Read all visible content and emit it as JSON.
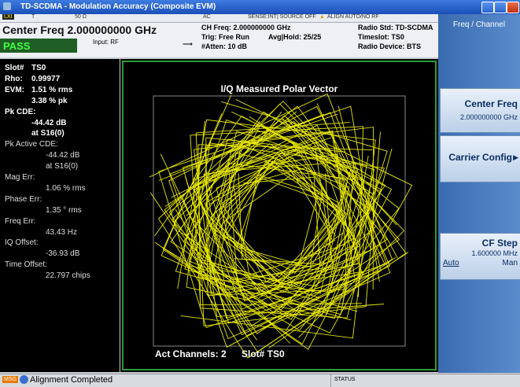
{
  "title_bar": {
    "title": "TD-SCDMA - Modulation Accuracy (Composite EVM)"
  },
  "status_row": {
    "trace": "T",
    "impedance": "50 Ω",
    "coupling": "AC",
    "sense": "SENSE:INT| SOURCE OFF",
    "align": "ALIGN AUTO/NO RF"
  },
  "header": {
    "center_freq": "Center Freq 2.000000000 GHz",
    "input": "Input: RF",
    "status": "PASS",
    "ch_freq": "CH Freq: 2.000000000 GHz",
    "trig": "Trig: Free Run",
    "avg": "Avg|Hold: 25/25",
    "atten": "#Atten: 10 dB",
    "radio_std": "Radio Std: TD-SCDMA",
    "timeslot": "Timeslot: TS0",
    "radio_device": "Radio Device: BTS"
  },
  "results": [
    {
      "label": "Slot#",
      "value": "TS0"
    },
    {
      "label": "Rho:",
      "value": "0.99977"
    },
    {
      "label": "EVM:",
      "value": "1.51 % rms"
    },
    {
      "value": "3.38 % pk"
    },
    {
      "label": "Pk CDE:"
    },
    {
      "value": "-44.42 dB"
    },
    {
      "value": "at  S16(0)"
    },
    {
      "label": "Pk Active CDE:"
    },
    {
      "value": "-44.42 dB"
    },
    {
      "value": "at  S16(0)"
    },
    {
      "label": "Mag Err:"
    },
    {
      "value": "1.06 % rms"
    },
    {
      "label": "Phase Err:"
    },
    {
      "value": "1.35 ° rms"
    },
    {
      "label": "Freq Err:"
    },
    {
      "value": "43.43 Hz"
    },
    {
      "label": "IQ Offset:"
    },
    {
      "value": "-36.93 dB"
    },
    {
      "label": "Time Offset:"
    },
    {
      "value": "22.797 chips"
    }
  ],
  "plot": {
    "title": "I/Q Measured Polar Vector",
    "footer_channels": "Act Channels: 2",
    "footer_slot": "Slot# TS0"
  },
  "softkeys": {
    "menu": "Freq / Channel",
    "keys": [
      {
        "label": "Center Freq",
        "value": "2.000000000 GHz"
      },
      {
        "label": "Carrier Config"
      },
      {
        "label": "CF Step",
        "value": "1.600000 MHz",
        "options": [
          "Auto",
          "Man"
        ]
      }
    ]
  },
  "message_bar": {
    "tag": "MSG",
    "message": "Alignment Completed",
    "status": "STATUS"
  }
}
